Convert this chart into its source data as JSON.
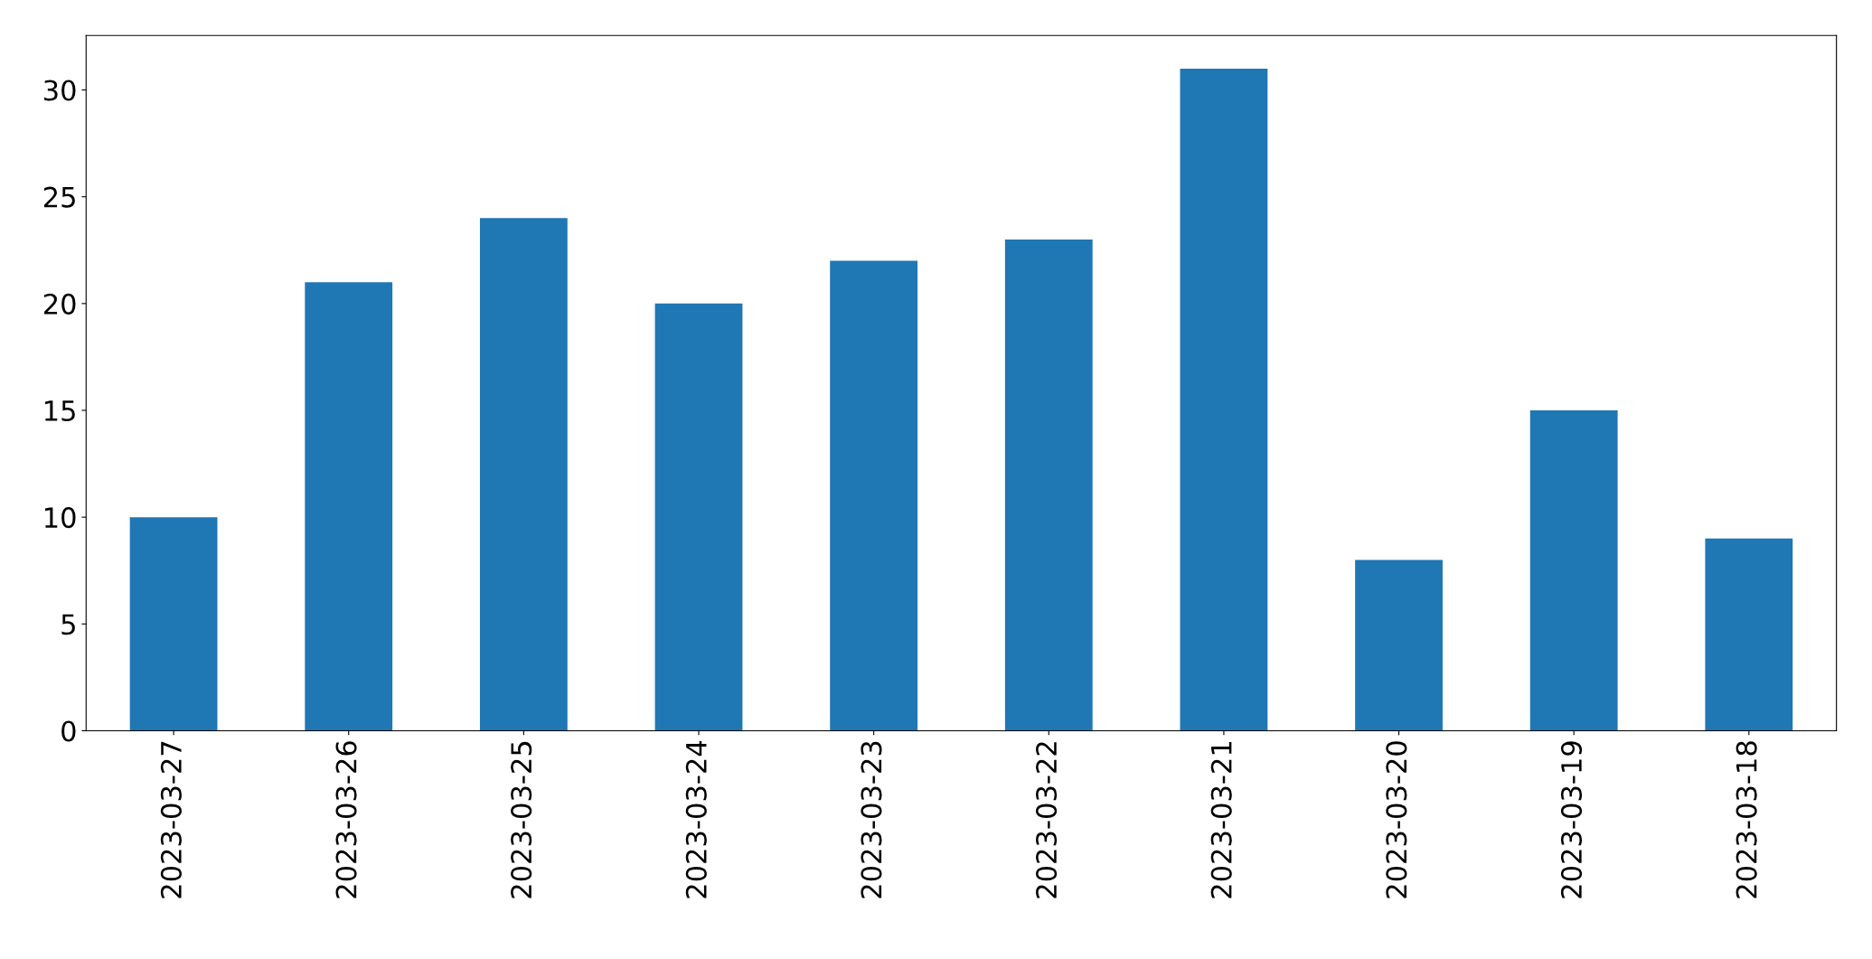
{
  "chart_data": {
    "type": "bar",
    "categories": [
      "2023-03-27",
      "2023-03-26",
      "2023-03-25",
      "2023-03-24",
      "2023-03-23",
      "2023-03-22",
      "2023-03-21",
      "2023-03-20",
      "2023-03-19",
      "2023-03-18"
    ],
    "values": [
      10,
      21,
      24,
      20,
      22,
      23,
      31,
      8,
      15,
      9
    ],
    "color": "#1f77b4",
    "ylim": [
      0,
      32.55
    ],
    "yticks": [
      0,
      5,
      10,
      15,
      20,
      25,
      30
    ],
    "grid": false,
    "legend": false
  }
}
